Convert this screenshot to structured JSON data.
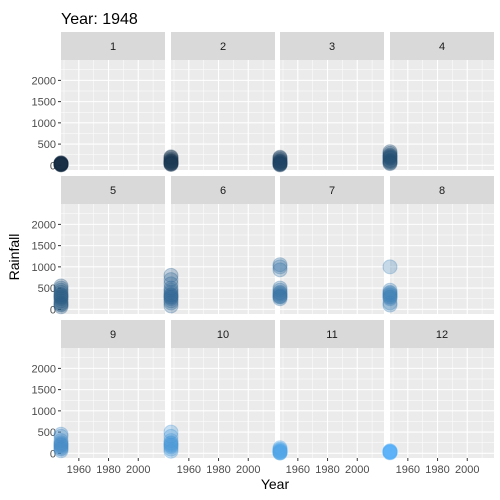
{
  "chart_data": {
    "type": "scatter",
    "title": "Year: 1948",
    "xlabel": "Year",
    "ylabel": "Rainfall",
    "facet_by": "Month",
    "xlim": [
      1948,
      2018
    ],
    "ylim": [
      -110,
      2480
    ],
    "x_ticks": [
      1960,
      1980,
      2000
    ],
    "y_ticks": [
      0,
      500,
      1000,
      1500,
      2000
    ],
    "grid": true,
    "legend": "none",
    "colors": {
      "panel_bg": "#ebebeb",
      "grid_major": "#ffffff",
      "strip_bg": "#d9d9d9",
      "point_dark": "#132b43",
      "point_light": "#56b1f7"
    },
    "point_alpha": 0.3,
    "panels": [
      {
        "label": "1",
        "x": 1948,
        "values": [
          15,
          30,
          45,
          25,
          60,
          10,
          35,
          50,
          20,
          40
        ]
      },
      {
        "label": "2",
        "x": 1948,
        "values": [
          20,
          40,
          60,
          90,
          120,
          150,
          180,
          70,
          100,
          50,
          200,
          30
        ]
      },
      {
        "label": "3",
        "x": 1948,
        "values": [
          10,
          30,
          50,
          80,
          110,
          140,
          170,
          190,
          60,
          20,
          90,
          40
        ]
      },
      {
        "label": "4",
        "x": 1948,
        "values": [
          40,
          80,
          120,
          160,
          200,
          240,
          280,
          320,
          100,
          60,
          180,
          220
        ]
      },
      {
        "label": "5",
        "x": 1948,
        "values": [
          60,
          100,
          150,
          200,
          250,
          300,
          350,
          400,
          450,
          500,
          550,
          120,
          280,
          330
        ]
      },
      {
        "label": "6",
        "x": 1948,
        "values": [
          80,
          150,
          200,
          250,
          300,
          350,
          400,
          450,
          500,
          600,
          700,
          800,
          280,
          330
        ]
      },
      {
        "label": "7",
        "x": 1948,
        "values": [
          250,
          300,
          350,
          400,
          450,
          500,
          930,
          1000,
          1050,
          320,
          380,
          290
        ]
      },
      {
        "label": "8",
        "x": 1948,
        "values": [
          100,
          150,
          250,
          300,
          350,
          400,
          450,
          1000,
          330,
          380,
          280
        ]
      },
      {
        "label": "9",
        "x": 1948,
        "values": [
          60,
          100,
          150,
          200,
          250,
          300,
          400,
          450,
          120,
          180,
          220
        ]
      },
      {
        "label": "10",
        "x": 1948,
        "values": [
          50,
          100,
          150,
          200,
          250,
          300,
          400,
          500,
          180,
          230
        ]
      },
      {
        "label": "11",
        "x": 1948,
        "values": [
          5,
          20,
          40,
          60,
          80,
          100,
          130,
          10,
          30,
          50
        ]
      },
      {
        "label": "12",
        "x": 1948,
        "values": [
          10,
          20,
          30,
          40,
          50,
          60,
          25,
          35
        ]
      }
    ]
  }
}
